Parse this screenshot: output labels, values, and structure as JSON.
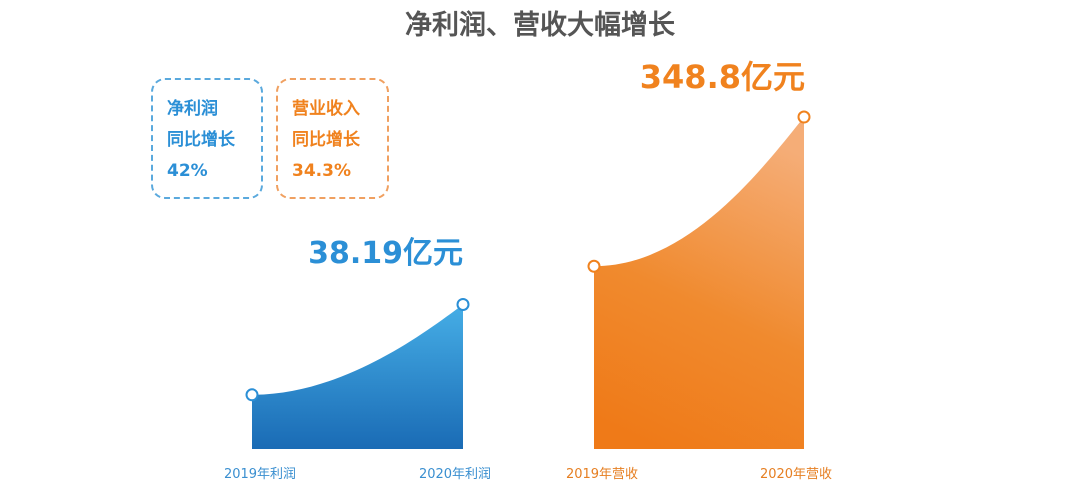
{
  "title": "净利润、营收大幅增长",
  "colors": {
    "profit": "#2b8fd6",
    "revenue": "#f0821e"
  },
  "callouts": {
    "profit": {
      "line1": "净利润",
      "line2": "同比增长",
      "line3": "42%"
    },
    "revenue": {
      "line1": "营业收入",
      "line2": "同比增长",
      "line3": "34.3%"
    }
  },
  "chart_data": [
    {
      "type": "area",
      "categories": [
        "2019年利润",
        "2020年利润"
      ],
      "series": [
        {
          "values": [
            26.9,
            38.19
          ]
        }
      ],
      "value_labels": [
        "",
        "38.19亿元"
      ],
      "ylim": [
        20,
        40
      ]
    },
    {
      "type": "area",
      "categories": [
        "2019年营收",
        "2020年营收"
      ],
      "series": [
        {
          "values": [
            259.7,
            348.8
          ]
        }
      ],
      "value_labels": [
        "",
        "348.8亿元"
      ],
      "ylim": [
        150,
        350
      ]
    }
  ]
}
